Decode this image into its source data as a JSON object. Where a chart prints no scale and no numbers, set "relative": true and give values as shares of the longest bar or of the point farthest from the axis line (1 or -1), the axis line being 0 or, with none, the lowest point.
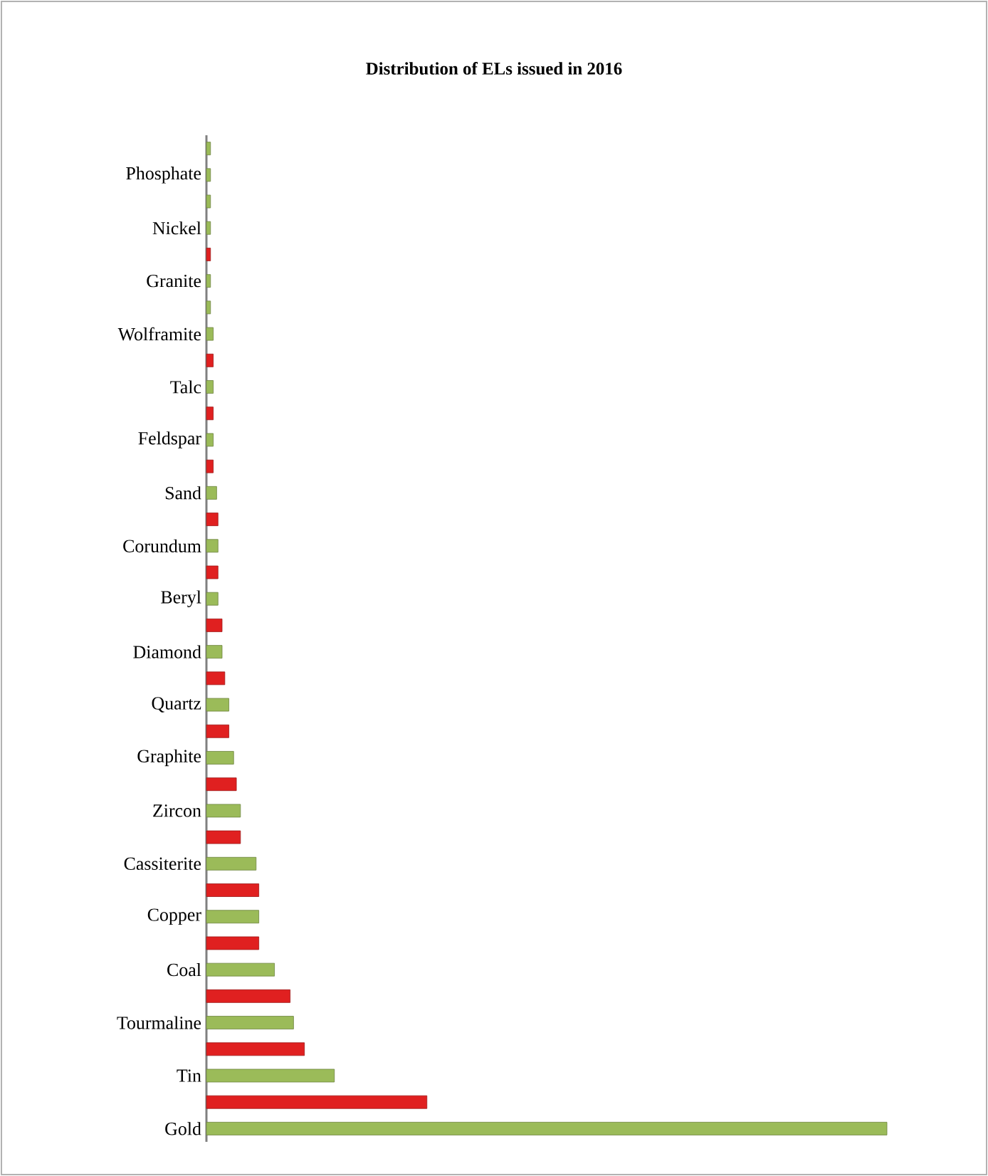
{
  "chart_data": {
    "type": "bar",
    "orientation": "horizontal",
    "relative": true,
    "title": "Distribution of ELs issued in 2016",
    "categories": [
      null,
      "Phosphate",
      null,
      "Nickel",
      null,
      "Granite",
      null,
      "Wolframite",
      null,
      "Talc",
      null,
      "Feldspar",
      null,
      "Sand",
      null,
      "Corundum",
      null,
      "Beryl",
      null,
      "Diamond",
      null,
      "Quartz",
      null,
      "Graphite",
      null,
      "Zircon",
      null,
      "Cassiterite",
      null,
      "Copper",
      null,
      "Coal",
      null,
      "Tourmaline",
      null,
      "Tin",
      null,
      "Gold"
    ],
    "values": [
      0.006,
      0.006,
      0.006,
      0.006,
      0.006,
      0.006,
      0.006,
      0.01,
      0.01,
      0.01,
      0.01,
      0.01,
      0.01,
      0.015,
      0.017,
      0.017,
      0.017,
      0.017,
      0.023,
      0.023,
      0.027,
      0.033,
      0.033,
      0.04,
      0.044,
      0.05,
      0.05,
      0.073,
      0.077,
      0.077,
      0.077,
      0.1,
      0.123,
      0.128,
      0.144,
      0.188,
      0.324,
      1
    ],
    "colors": [
      "#9bbb59",
      "#9bbb59",
      "#9bbb59",
      "#9bbb59",
      "#e02020",
      "#9bbb59",
      "#9bbb59",
      "#9bbb59",
      "#e02020",
      "#9bbb59",
      "#e02020",
      "#9bbb59",
      "#e02020",
      "#9bbb59",
      "#e02020",
      "#9bbb59",
      "#e02020",
      "#9bbb59",
      "#e02020",
      "#9bbb59",
      "#e02020",
      "#9bbb59",
      "#e02020",
      "#9bbb59",
      "#e02020",
      "#9bbb59",
      "#e02020",
      "#9bbb59",
      "#e02020",
      "#9bbb59",
      "#e02020",
      "#9bbb59",
      "#e02020",
      "#9bbb59",
      "#e02020",
      "#9bbb59",
      "#e02020",
      "#9bbb59"
    ]
  }
}
